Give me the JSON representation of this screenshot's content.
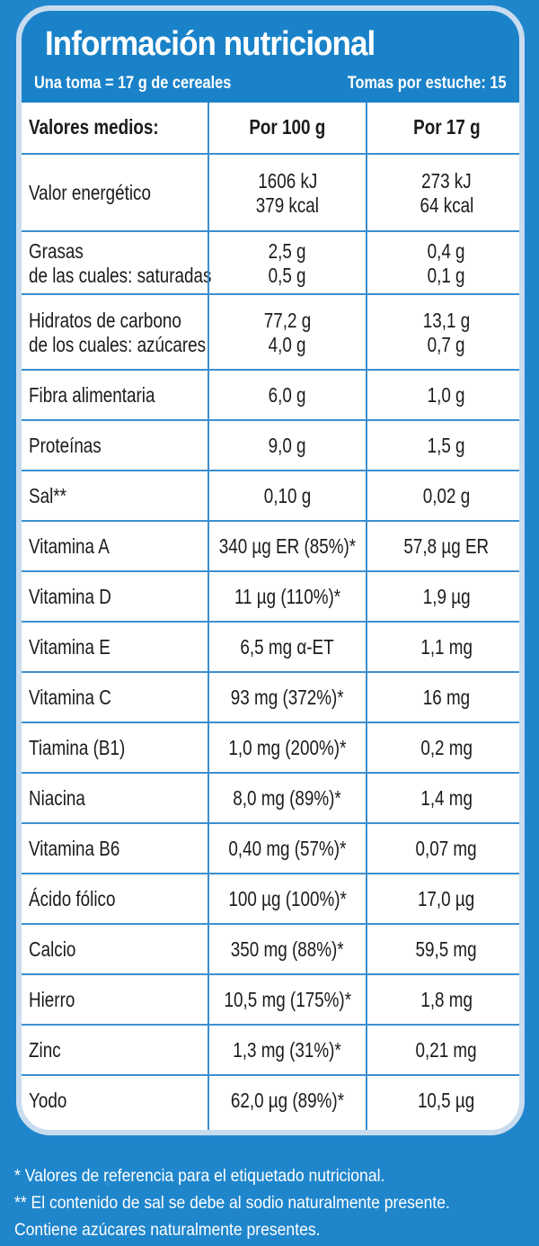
{
  "panel": {
    "title": "Información nutricional",
    "serving": "Una toma = 17 g de cereales",
    "servings_per_pack": "Tomas por estuche: 15"
  },
  "table": {
    "headers": [
      "Valores medios:",
      "Por 100 g",
      "Por 17 g"
    ],
    "rows": [
      {
        "name": [
          "Valor energético"
        ],
        "per100": [
          "1606 kJ",
          "379 kcal"
        ],
        "per17": [
          "273 kJ",
          "64 kcal"
        ]
      },
      {
        "name": [
          "Grasas",
          "de las cuales: saturadas"
        ],
        "per100": [
          "2,5 g",
          "0,5 g"
        ],
        "per17": [
          "0,4 g",
          "0,1 g"
        ]
      },
      {
        "name": [
          "Hidratos de carbono",
          "de los cuales: azúcares"
        ],
        "per100": [
          "77,2 g",
          "4,0 g"
        ],
        "per17": [
          "13,1 g",
          "0,7 g"
        ]
      },
      {
        "name": [
          "Fibra alimentaria"
        ],
        "per100": [
          "6,0 g"
        ],
        "per17": [
          "1,0 g"
        ]
      },
      {
        "name": [
          "Proteínas"
        ],
        "per100": [
          "9,0 g"
        ],
        "per17": [
          "1,5 g"
        ]
      },
      {
        "name": [
          "Sal**"
        ],
        "per100": [
          "0,10 g"
        ],
        "per17": [
          "0,02 g"
        ]
      },
      {
        "name": [
          "Vitamina A"
        ],
        "per100": [
          "340 µg ER (85%)*"
        ],
        "per17": [
          "57,8 µg ER"
        ]
      },
      {
        "name": [
          "Vitamina D"
        ],
        "per100": [
          "11 µg (110%)*"
        ],
        "per17": [
          "1,9 µg"
        ]
      },
      {
        "name": [
          "Vitamina E"
        ],
        "per100": [
          "6,5 mg  α-ET"
        ],
        "per17": [
          "1,1 mg"
        ]
      },
      {
        "name": [
          "Vitamina C"
        ],
        "per100": [
          "93 mg (372%)*"
        ],
        "per17": [
          "16 mg"
        ]
      },
      {
        "name": [
          "Tiamina (B1)"
        ],
        "per100": [
          "1,0 mg (200%)*"
        ],
        "per17": [
          "0,2 mg"
        ]
      },
      {
        "name": [
          "Niacina"
        ],
        "per100": [
          "8,0 mg (89%)*"
        ],
        "per17": [
          "1,4 mg"
        ]
      },
      {
        "name": [
          "Vitamina B6"
        ],
        "per100": [
          "0,40 mg (57%)*"
        ],
        "per17": [
          "0,07 mg"
        ]
      },
      {
        "name": [
          "Ácido fólico"
        ],
        "per100": [
          "100 µg (100%)*"
        ],
        "per17": [
          "17,0 µg"
        ]
      },
      {
        "name": [
          "Calcio"
        ],
        "per100": [
          "350 mg (88%)*"
        ],
        "per17": [
          "59,5 mg"
        ]
      },
      {
        "name": [
          "Hierro"
        ],
        "per100": [
          "10,5 mg (175%)*"
        ],
        "per17": [
          "1,8 mg"
        ]
      },
      {
        "name": [
          "Zinc"
        ],
        "per100": [
          "1,3 mg (31%)*"
        ],
        "per17": [
          "0,21 mg"
        ]
      },
      {
        "name": [
          "Yodo"
        ],
        "per100": [
          "62,0 µg (89%)*"
        ],
        "per17": [
          "10,5 µg"
        ]
      }
    ]
  },
  "footnotes": [
    "* Valores de referencia para el etiquetado nutricional.",
    "** El contenido de sal se debe al sodio naturalmente presente.",
    "Contiene azúcares naturalmente presentes."
  ],
  "colors": {
    "brand_blue": "#1a82c8",
    "rule_blue": "#3b8fd0",
    "panel_border": "#c9dcef"
  }
}
